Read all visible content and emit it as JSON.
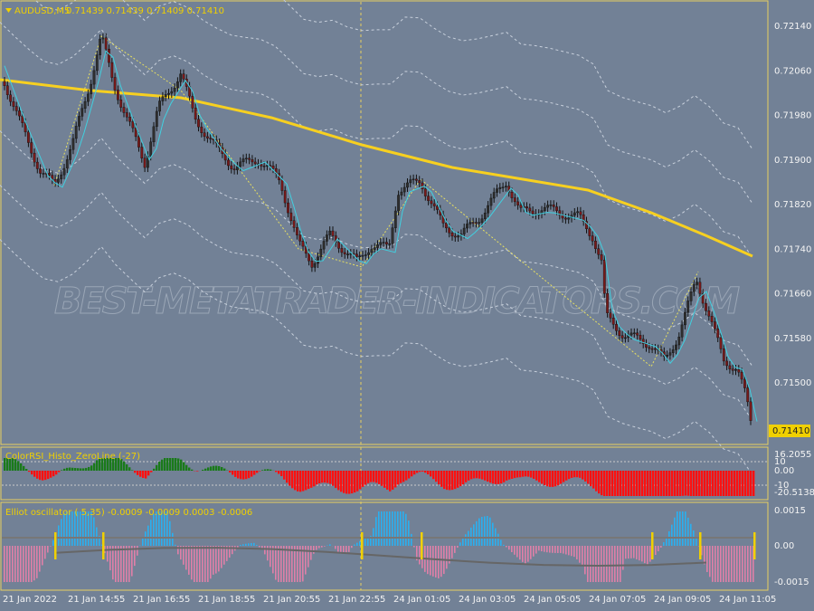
{
  "header": {
    "symbol": "AUDUSD,M5",
    "ohlc": "0.71439 0.71439 0.71409 0.71410"
  },
  "price_axis": [
    "0.72140",
    "0.72060",
    "0.71980",
    "0.71900",
    "0.71820",
    "0.71740",
    "0.71660",
    "0.71580",
    "0.71500"
  ],
  "current_price": "0.71410",
  "watermark": "BEST-METATRADER-INDICATORS.COM",
  "rsi_panel": {
    "title": "ColorRSI_Histo_ZeroLine (-27)",
    "axis": [
      "16.2055",
      "10",
      "0.00",
      "-10",
      "-20.5138"
    ]
  },
  "elliot_panel": {
    "title": "Elliot oscillator ( 5,35) -0.0009 -0.0009 0.0003 -0.0006",
    "axis": [
      "0.0015",
      "0.00",
      "-0.0015"
    ]
  },
  "time_axis": [
    "21 Jan 2022",
    "21 Jan 14:55",
    "21 Jan 16:55",
    "21 Jan 18:55",
    "21 Jan 20:55",
    "21 Jan 22:55",
    "24 Jan 01:05",
    "24 Jan 03:05",
    "24 Jan 05:05",
    "24 Jan 07:05",
    "24 Jan 09:05",
    "24 Jan 11:05"
  ]
}
